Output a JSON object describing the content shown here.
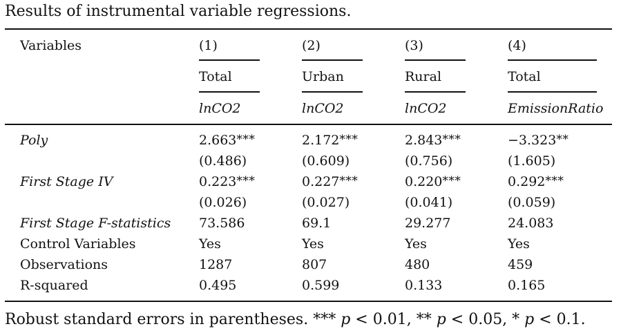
{
  "caption": "Results of instrumental variable regressions.",
  "header": {
    "variables_label": "Variables",
    "columns": [
      {
        "number": "(1)",
        "sample": "Total",
        "dependent": "lnCO2"
      },
      {
        "number": "(2)",
        "sample": "Urban",
        "dependent": "lnCO2"
      },
      {
        "number": "(3)",
        "sample": "Rural",
        "dependent": "lnCO2"
      },
      {
        "number": "(4)",
        "sample": "Total",
        "dependent": "EmissionRatio"
      }
    ]
  },
  "rows": {
    "poly": {
      "label": "Poly",
      "coef": [
        {
          "value": "2.663",
          "stars": "***"
        },
        {
          "value": "2.172",
          "stars": "***"
        },
        {
          "value": "2.843",
          "stars": "***"
        },
        {
          "value": "−3.323",
          "stars": "**"
        }
      ],
      "se": [
        "(0.486)",
        "(0.609)",
        "(0.756)",
        "(1.605)"
      ]
    },
    "first_stage_iv": {
      "label": "First Stage IV",
      "coef": [
        {
          "value": "0.223",
          "stars": "***"
        },
        {
          "value": "0.227",
          "stars": "***"
        },
        {
          "value": "0.220",
          "stars": "***"
        },
        {
          "value": "0.292",
          "stars": "***"
        }
      ],
      "se": [
        "(0.026)",
        "(0.027)",
        "(0.041)",
        "(0.059)"
      ]
    },
    "f_stat": {
      "label": "First Stage F-statistics",
      "values": [
        "73.586",
        "69.1",
        "29.277",
        "24.083"
      ]
    },
    "controls": {
      "label": "Control Variables",
      "values": [
        "Yes",
        "Yes",
        "Yes",
        "Yes"
      ]
    },
    "observations": {
      "label": "Observations",
      "values": [
        "1287",
        "807",
        "480",
        "459"
      ]
    },
    "r_squared": {
      "label": "R-squared",
      "values": [
        "0.495",
        "0.599",
        "0.133",
        "0.165"
      ]
    }
  },
  "note": {
    "prefix": "Robust standard errors in parentheses. *** ",
    "p1": "p",
    "t1": " < 0.01, ** ",
    "p2": "p",
    "t2": " < 0.05, * ",
    "p3": "p",
    "t3": " < 0.1."
  }
}
